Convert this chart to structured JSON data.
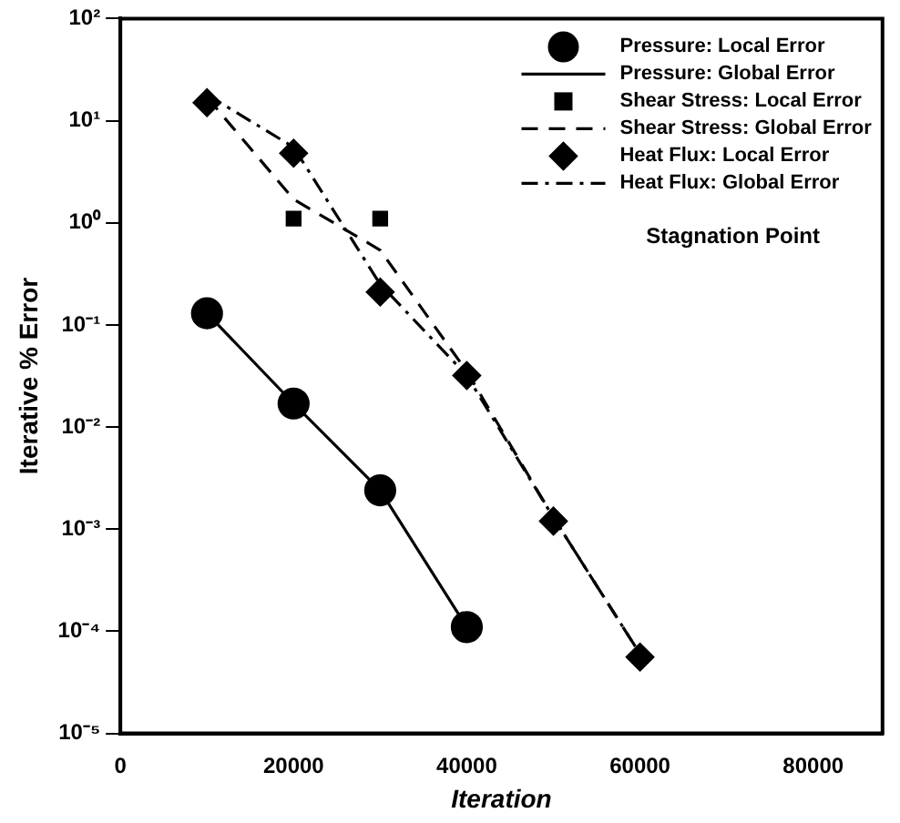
{
  "chart_data": {
    "type": "line",
    "xlabel": "Iteration",
    "ylabel": "Iterative % Error",
    "log": "y",
    "grid": false,
    "legend": "top right",
    "xlim": [
      0,
      88000
    ],
    "xticks": [
      0,
      20000,
      40000,
      60000,
      80000
    ],
    "ylim": [
      1e-05,
      100
    ],
    "yticks": [
      {
        "value": 1e-05,
        "label": "10⁻⁵"
      },
      {
        "value": 0.0001,
        "label": "10⁻⁴"
      },
      {
        "value": 0.001,
        "label": "10⁻³"
      },
      {
        "value": 0.01,
        "label": "10⁻²"
      },
      {
        "value": 0.1,
        "label": "10⁻¹"
      },
      {
        "value": 1,
        "label": "10⁰"
      },
      {
        "value": 10,
        "label": "10¹"
      },
      {
        "value": 100,
        "label": "10²"
      }
    ],
    "annotations": [
      "Stagnation Point"
    ],
    "series": [
      {
        "name": "Pressure: Local Error",
        "type": "scatter",
        "marker": "circle",
        "color": "#000000",
        "x": [
          10000,
          20000,
          30000,
          40000
        ],
        "values": [
          0.13,
          0.017,
          0.0024,
          0.00011
        ]
      },
      {
        "name": "Pressure: Global Error",
        "type": "line",
        "marker": "none",
        "line_style": "solid",
        "color": "#000000",
        "x": [
          10000,
          20000,
          30000,
          40000
        ],
        "values": [
          0.13,
          0.017,
          0.0024,
          0.00011
        ]
      },
      {
        "name": "Shear Stress: Local Error",
        "type": "scatter",
        "marker": "square",
        "color": "#000000",
        "x": [
          20000,
          30000
        ],
        "values": [
          1.1,
          1.1
        ]
      },
      {
        "name": "Shear Stress: Global Error",
        "type": "line",
        "marker": "none",
        "line_style": "dashed",
        "color": "#000000",
        "x": [
          10000,
          20000,
          30000,
          40000,
          50000,
          60000
        ],
        "values": [
          17,
          1.7,
          0.54,
          0.035,
          0.0013,
          6e-05
        ]
      },
      {
        "name": "Heat Flux: Local Error",
        "type": "scatter",
        "marker": "diamond",
        "color": "#000000",
        "x": [
          10000,
          20000,
          30000,
          40000,
          50000,
          60000
        ],
        "values": [
          15,
          4.8,
          0.21,
          0.032,
          0.0012,
          5.6e-05
        ]
      },
      {
        "name": "Heat Flux: Global Error",
        "type": "line",
        "marker": "none",
        "line_style": "dashdot",
        "color": "#000000",
        "x": [
          10000,
          20000,
          30000,
          40000,
          50000,
          60000
        ],
        "values": [
          18,
          5.5,
          0.25,
          0.032,
          0.0013,
          6e-05
        ]
      }
    ]
  }
}
